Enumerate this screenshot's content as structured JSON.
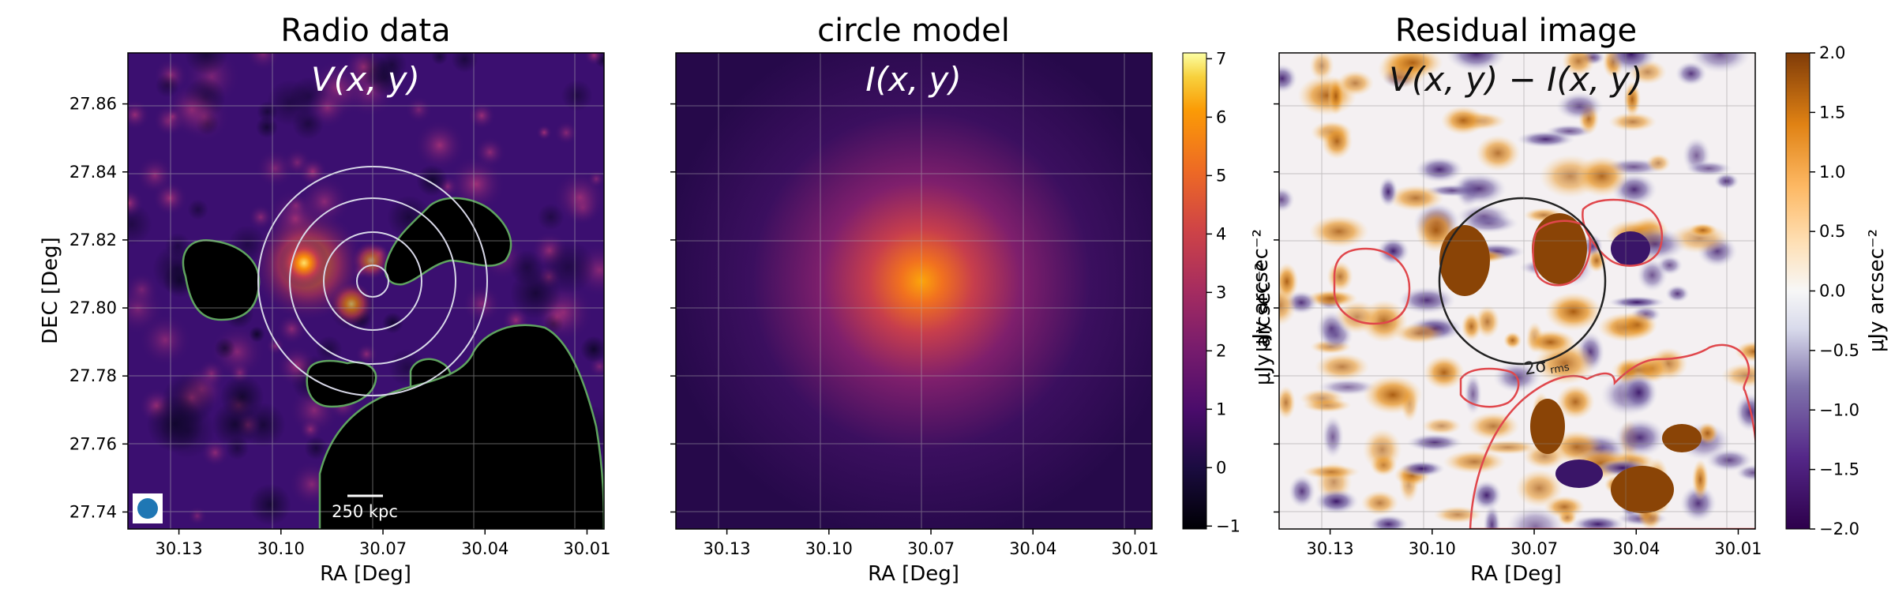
{
  "chart_data": [
    {
      "type": "heatmap",
      "title": "Radio data",
      "inner_label": "V(x, y)",
      "xlabel": "RA [Deg]",
      "ylabel": "DEC [Deg]",
      "x_ticks": [
        "30.13",
        "30.10",
        "30.07",
        "30.04",
        "30.01"
      ],
      "y_ticks": [
        "27.86",
        "27.84",
        "27.82",
        "27.80",
        "27.78",
        "27.76",
        "27.74"
      ],
      "xlim": [
        30.145,
        30.005
      ],
      "ylim": [
        27.735,
        27.875
      ],
      "colormap": "inferno",
      "grid": true,
      "annotations": {
        "scalebar_label": "250 kpc",
        "circle_center": [
          30.07,
          27.809
        ],
        "circle_radii_deg": [
          0.007,
          0.014,
          0.024,
          0.034
        ],
        "beam": "blue filled circle, bottom-left",
        "masks": "green-outlined black masked regions"
      },
      "peak_emission": [
        30.09,
        27.812
      ]
    },
    {
      "type": "heatmap",
      "title": "circle model",
      "inner_label": "I(x, y)",
      "xlabel": "RA [Deg]",
      "x_ticks": [
        "30.13",
        "30.10",
        "30.07",
        "30.04",
        "30.01"
      ],
      "xlim": [
        30.145,
        30.005
      ],
      "ylim": [
        27.735,
        27.875
      ],
      "colormap": "inferno",
      "grid": true,
      "model_center": [
        30.07,
        27.809
      ],
      "colorbar": {
        "label": "μJy arcsec⁻²",
        "range": [
          -1.05,
          7.1
        ],
        "ticks": [
          "7",
          "6",
          "5",
          "4",
          "3",
          "2",
          "1",
          "0",
          "−1"
        ],
        "tick_values": [
          7,
          6,
          5,
          4,
          3,
          2,
          1,
          0,
          -1
        ]
      }
    },
    {
      "type": "heatmap",
      "title": "Residual image",
      "inner_label": "V(x, y) − I(x, y)",
      "xlabel": "RA [Deg]",
      "x_ticks": [
        "30.13",
        "30.10",
        "30.07",
        "30.04",
        "30.01"
      ],
      "xlim": [
        30.145,
        30.005
      ],
      "ylim": [
        27.735,
        27.875
      ],
      "colormap": "PuOr_r",
      "grid": true,
      "annotations": {
        "circle_label": "2σ",
        "circle_label_sub": "rms",
        "circle_center": [
          30.07,
          27.809
        ],
        "masks": "red-outlined contours"
      },
      "colorbar": {
        "label": "μJy arcsec⁻²",
        "range": [
          -2.0,
          2.0
        ],
        "ticks": [
          "2.0",
          "1.5",
          "1.0",
          "0.5",
          "0.0",
          "−0.5",
          "−1.0",
          "−1.5",
          "−2.0"
        ],
        "tick_values": [
          2.0,
          1.5,
          1.0,
          0.5,
          0.0,
          -0.5,
          -1.0,
          -1.5,
          -2.0
        ]
      },
      "side_label": "μJy arcsec⁻²"
    }
  ]
}
